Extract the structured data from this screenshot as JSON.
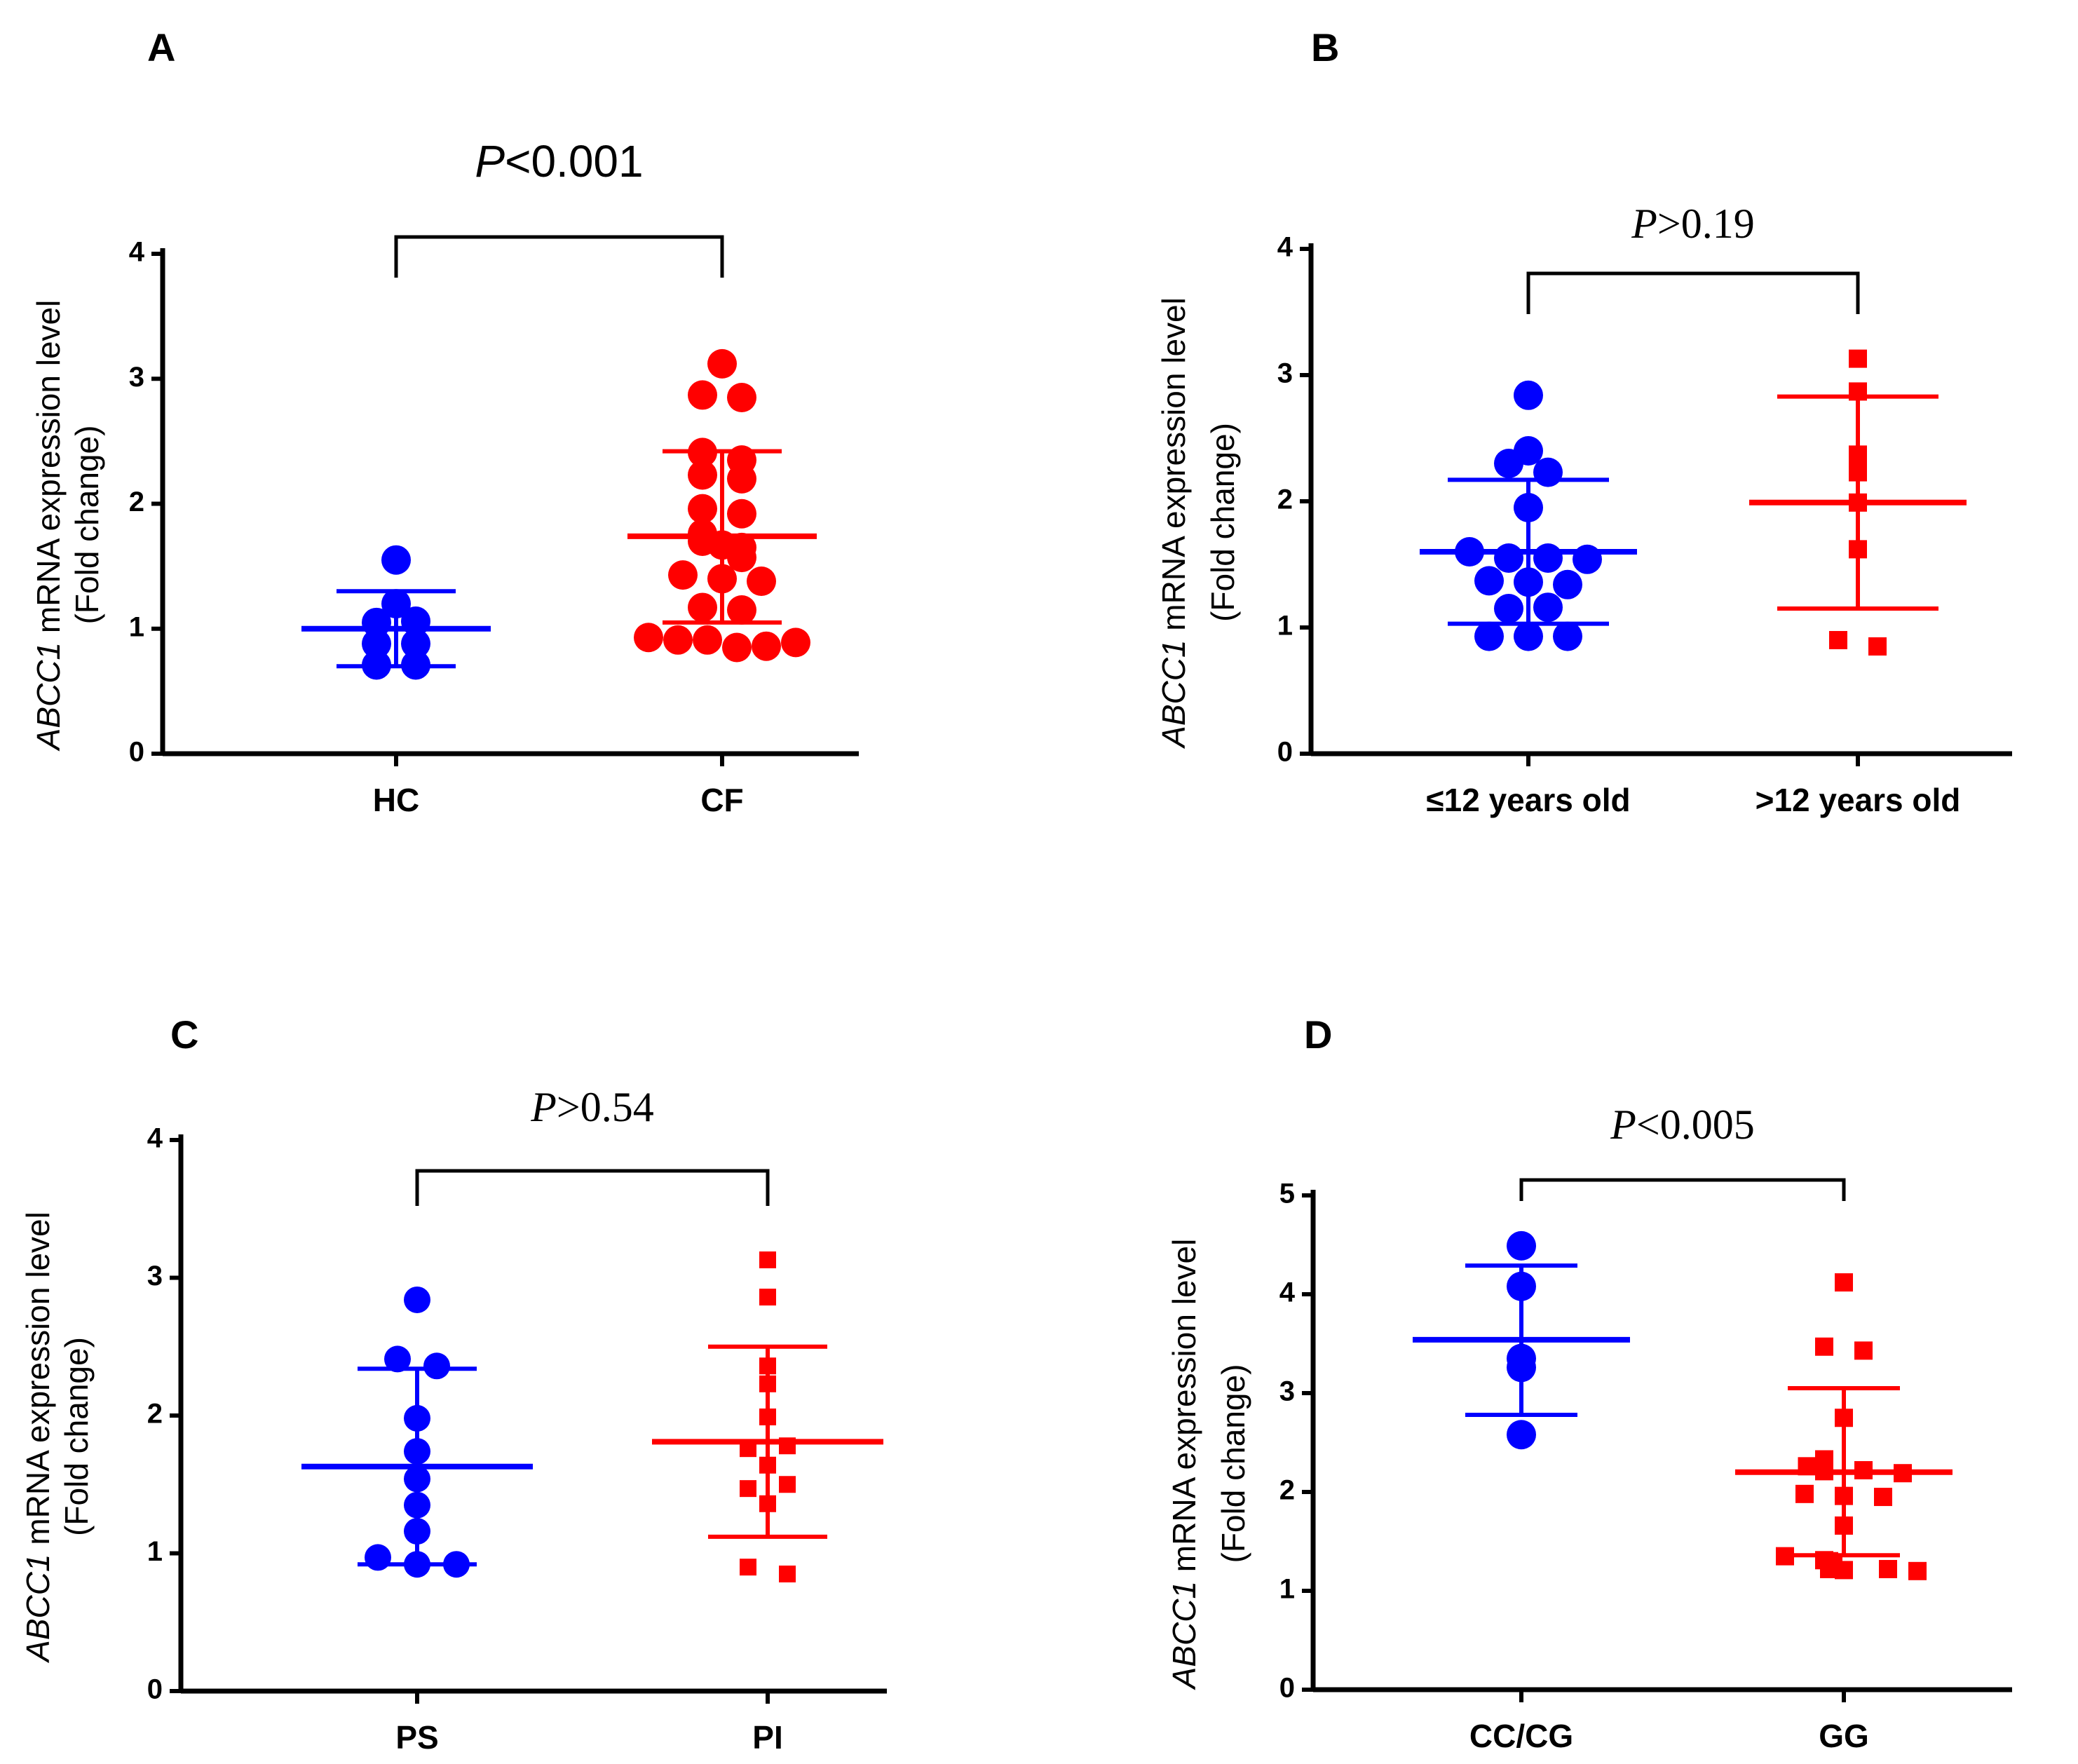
{
  "chart_data": [
    {
      "type": "scatter",
      "panel": "A",
      "ylabel_gene": "ABCC1",
      "ylabel_rest": " mRNA expression level",
      "ylabel_line2": "(Fold change)",
      "ylim": [
        0,
        4
      ],
      "yticks": [
        "0",
        "1",
        "2",
        "3",
        "4"
      ],
      "categories": [
        "HC",
        "CF"
      ],
      "marker": "circle",
      "p_prefix": "P",
      "p_value": "<0.001",
      "p_font": "sans",
      "groups": [
        {
          "name": "HC",
          "color": "#0000ff",
          "mean": 1.0,
          "sd_low": 0.7,
          "sd_high": 1.3,
          "points": [
            1.55,
            1.2,
            1.05,
            1.06,
            0.88,
            0.88,
            0.71,
            0.71
          ]
        },
        {
          "name": "CF",
          "color": "#ff0000",
          "mean": 1.74,
          "sd_low": 1.05,
          "sd_high": 2.42,
          "points": [
            3.12,
            2.87,
            2.85,
            2.41,
            2.35,
            2.23,
            2.2,
            1.96,
            1.92,
            1.76,
            1.7,
            1.67,
            1.65,
            1.57,
            1.43,
            1.4,
            1.38,
            1.17,
            1.15,
            0.93,
            0.91,
            0.91,
            0.85,
            0.86,
            0.89
          ]
        }
      ]
    },
    {
      "type": "scatter",
      "panel": "B",
      "ylabel_gene": "ABCC1",
      "ylabel_rest": " mRNA expression level",
      "ylabel_line2": "(Fold change)",
      "ylim": [
        0,
        4
      ],
      "yticks": [
        "0",
        "1",
        "2",
        "3",
        "4"
      ],
      "categories": [
        "≤12 years old",
        ">12 years old"
      ],
      "marker": "mixed",
      "p_prefix": "P",
      "p_value": ">0.19",
      "p_font": "serif",
      "groups": [
        {
          "name": "≤12 years old",
          "color": "#0000ff",
          "marker": "circle",
          "mean": 1.6,
          "sd_low": 1.03,
          "sd_high": 2.17,
          "points": [
            2.84,
            2.4,
            2.3,
            2.23,
            1.95,
            1.6,
            1.55,
            1.55,
            1.54,
            1.37,
            1.36,
            1.34,
            1.15,
            1.16,
            0.93,
            0.93,
            0.93
          ]
        },
        {
          "name": ">12 years old",
          "color": "#ff0000",
          "marker": "square",
          "mean": 1.99,
          "sd_low": 1.15,
          "sd_high": 2.83,
          "points": [
            3.13,
            2.87,
            2.37,
            2.23,
            1.99,
            1.62,
            0.9,
            0.85
          ]
        }
      ]
    },
    {
      "type": "scatter",
      "panel": "C",
      "ylabel_gene": "ABCC1",
      "ylabel_rest": " mRNA expression level",
      "ylabel_line2": "(Fold change)",
      "ylim": [
        0,
        4
      ],
      "yticks": [
        "0",
        "1",
        "2",
        "3",
        "4"
      ],
      "categories": [
        "PS",
        "PI"
      ],
      "marker": "mixed",
      "p_prefix": "P",
      "p_value": ">0.54",
      "p_font": "serif",
      "groups": [
        {
          "name": "PS",
          "color": "#0000ff",
          "marker": "circle",
          "mean": 1.63,
          "sd_low": 0.92,
          "sd_high": 2.34,
          "points": [
            2.84,
            2.41,
            2.36,
            1.98,
            1.74,
            1.54,
            1.35,
            1.16,
            0.97,
            0.92,
            0.92
          ]
        },
        {
          "name": "PI",
          "color": "#ff0000",
          "marker": "square",
          "mean": 1.81,
          "sd_low": 1.12,
          "sd_high": 2.5,
          "points": [
            3.13,
            2.86,
            2.36,
            2.23,
            1.99,
            1.76,
            1.78,
            1.64,
            1.47,
            1.5,
            1.36,
            0.9,
            0.85
          ]
        }
      ]
    },
    {
      "type": "scatter",
      "panel": "D",
      "ylabel_gene": "ABCC1",
      "ylabel_rest": " mRNA expression level",
      "ylabel_line2": "(Fold change)",
      "ylim": [
        0,
        5
      ],
      "yticks": [
        "0",
        "1",
        "2",
        "3",
        "4",
        "5"
      ],
      "categories": [
        "CC/CG",
        "GG"
      ],
      "marker": "mixed",
      "p_prefix": "P",
      "p_value": "<0.005",
      "p_font": "serif",
      "groups": [
        {
          "name": "CC/CG",
          "color": "#0000ff",
          "marker": "circle",
          "mean": 3.54,
          "sd_low": 2.78,
          "sd_high": 4.29,
          "points": [
            4.49,
            4.08,
            3.35,
            3.26,
            2.58
          ]
        },
        {
          "name": "GG",
          "color": "#ff0000",
          "marker": "square",
          "mean": 2.2,
          "sd_low": 1.36,
          "sd_high": 3.05,
          "points": [
            4.12,
            3.47,
            3.43,
            2.75,
            2.33,
            2.26,
            2.21,
            2.22,
            2.19,
            1.98,
            1.96,
            1.95,
            1.66,
            1.35,
            1.31,
            1.3,
            1.28,
            1.22,
            1.21,
            1.22,
            1.2
          ]
        }
      ]
    }
  ]
}
